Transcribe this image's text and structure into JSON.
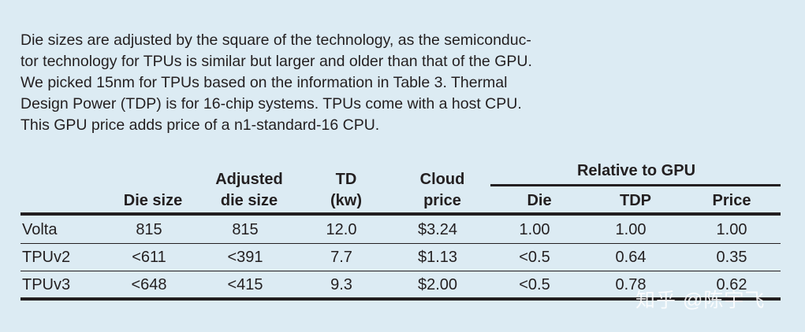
{
  "caption": {
    "lines": [
      "Die sizes are adjusted by the square of the technology, as the semiconduc-",
      "tor technology for TPUs is similar but larger and older than that of the GPU.",
      "We picked 15nm for TPUs based on the information in Table 3. Thermal",
      "Design Power (TDP) is for 16-chip systems. TPUs come with a host CPU.",
      "This GPU price adds price of a n1-standard-16 CPU."
    ]
  },
  "table": {
    "group_header": "Relative to GPU",
    "headers": {
      "die_size": [
        "",
        "Die size"
      ],
      "adjusted": [
        "Adjusted",
        "die size"
      ],
      "td": [
        "TD",
        "(kw)"
      ],
      "cloud": [
        "Cloud",
        "price"
      ],
      "rel_die": [
        "",
        "Die"
      ],
      "rel_tdp": [
        "",
        "TDP"
      ],
      "rel_price": [
        "",
        "Price"
      ]
    },
    "rows": [
      [
        "Volta",
        "815",
        "815",
        "12.0",
        "$3.24",
        "1.00",
        "1.00",
        "1.00"
      ],
      [
        "TPUv2",
        "<611",
        "<391",
        "7.7",
        "$1.13",
        "<0.5",
        "0.64",
        "0.35"
      ],
      [
        "TPUv3",
        "<648",
        "<415",
        "9.3",
        "$2.00",
        "<0.5",
        "0.78",
        "0.62"
      ]
    ]
  },
  "watermark": "知乎 @陈宇飞"
}
